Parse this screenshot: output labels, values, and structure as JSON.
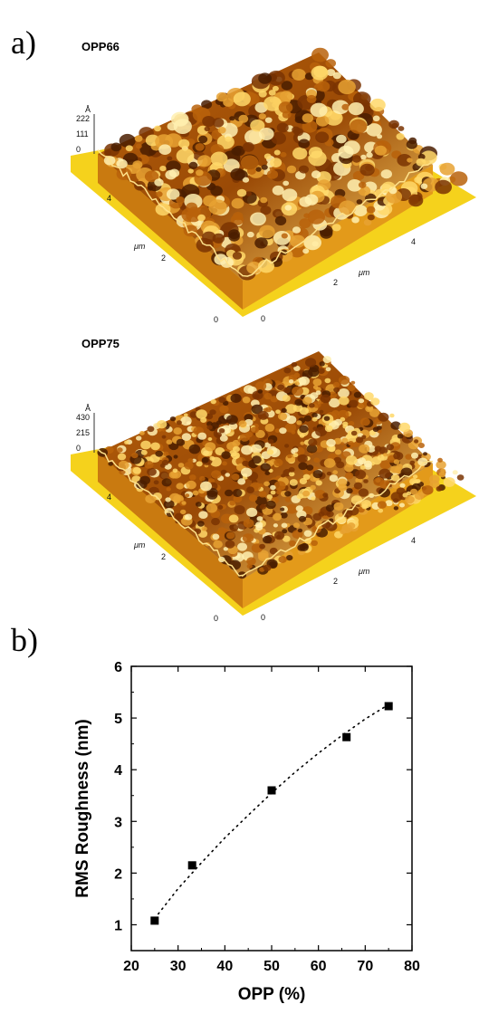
{
  "panel_a_label": "a)",
  "panel_b_label": "b)",
  "afm_images": [
    {
      "title": "OPP66",
      "z_unit": "Å",
      "z_ticks": [
        "222",
        "111",
        "0"
      ],
      "y_ticks": [
        "4",
        "2",
        "0"
      ],
      "x_ticks": [
        "0",
        "2",
        "4"
      ],
      "y_unit": "μm",
      "x_unit": "μm"
    },
    {
      "title": "OPP75",
      "z_unit": "Å",
      "z_ticks": [
        "430",
        "215",
        "0"
      ],
      "y_ticks": [
        "4",
        "2",
        "0"
      ],
      "x_ticks": [
        "0",
        "2",
        "4"
      ],
      "y_unit": "μm",
      "x_unit": "μm"
    }
  ],
  "colors": {
    "base_plate": "#f5d21c",
    "surface_dark": "#4a1d00",
    "surface_mid": "#b8610a",
    "surface_light": "#ffd86a",
    "marker": "#000000"
  },
  "chart_data": {
    "type": "scatter",
    "xlabel": "OPP (%)",
    "ylabel": "RMS Roughness (nm)",
    "xlim": [
      20,
      80
    ],
    "ylim": [
      0.5,
      6
    ],
    "x_ticks": [
      20,
      30,
      40,
      50,
      60,
      70,
      80
    ],
    "y_ticks": [
      1,
      2,
      3,
      4,
      5,
      6
    ],
    "series": [
      {
        "x": [
          25,
          33,
          50,
          66,
          75
        ],
        "y": [
          1.08,
          2.15,
          3.6,
          4.63,
          5.23
        ]
      }
    ],
    "trend": {
      "style": "dotted",
      "x": [
        25,
        30,
        35,
        40,
        45,
        50,
        55,
        60,
        65,
        70,
        75
      ],
      "y": [
        1.12,
        1.7,
        2.2,
        2.68,
        3.12,
        3.55,
        3.95,
        4.32,
        4.66,
        4.98,
        5.26
      ]
    },
    "grid": false
  }
}
